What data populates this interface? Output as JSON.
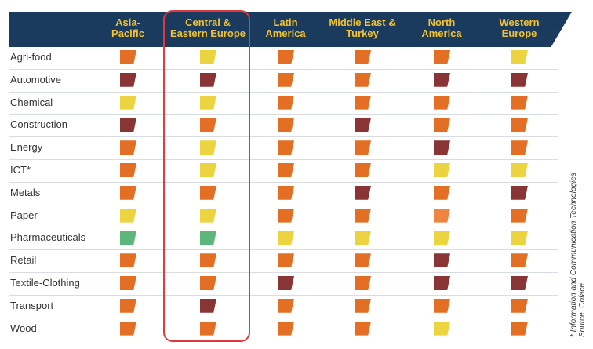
{
  "colors": {
    "header_bg": "#1a3a5e",
    "header_text": "#f2c230",
    "highlight": "#e03a3e",
    "rating_colors": {
      "yellow": "#ecd340",
      "orange": "#e36f24",
      "light_orange": "#ef8541",
      "dark": "#8a3535",
      "green": "#5cb87a"
    }
  },
  "regions": [
    {
      "label": "Asia-\nPacific"
    },
    {
      "label": "Central &\nEastern Europe"
    },
    {
      "label": "Latin\nAmerica"
    },
    {
      "label": "Middle East &\nTurkey"
    },
    {
      "label": "North\nAmerica"
    },
    {
      "label": "Western\nEurope"
    }
  ],
  "sectors": [
    {
      "label": "Agri-food",
      "ratings": [
        "orange",
        "yellow",
        "orange",
        "orange",
        "orange",
        "yellow"
      ]
    },
    {
      "label": "Automotive",
      "ratings": [
        "dark",
        "dark",
        "orange",
        "orange",
        "dark",
        "dark"
      ]
    },
    {
      "label": "Chemical",
      "ratings": [
        "yellow",
        "yellow",
        "orange",
        "orange",
        "orange",
        "orange"
      ]
    },
    {
      "label": "Construction",
      "ratings": [
        "dark",
        "orange",
        "orange",
        "dark",
        "orange",
        "orange"
      ]
    },
    {
      "label": "Energy",
      "ratings": [
        "orange",
        "yellow",
        "orange",
        "orange",
        "dark",
        "orange"
      ]
    },
    {
      "label": "ICT*",
      "ratings": [
        "orange",
        "yellow",
        "orange",
        "orange",
        "yellow",
        "yellow"
      ]
    },
    {
      "label": "Metals",
      "ratings": [
        "orange",
        "orange",
        "orange",
        "dark",
        "orange",
        "dark"
      ]
    },
    {
      "label": "Paper",
      "ratings": [
        "yellow",
        "yellow",
        "orange",
        "orange",
        "light_orange",
        "orange"
      ]
    },
    {
      "label": "Pharmaceuticals",
      "ratings": [
        "green",
        "green",
        "yellow",
        "yellow",
        "yellow",
        "yellow"
      ]
    },
    {
      "label": "Retail",
      "ratings": [
        "orange",
        "orange",
        "orange",
        "orange",
        "dark",
        "orange"
      ]
    },
    {
      "label": "Textile-Clothing",
      "ratings": [
        "orange",
        "orange",
        "dark",
        "orange",
        "dark",
        "dark"
      ]
    },
    {
      "label": "Transport",
      "ratings": [
        "orange",
        "dark",
        "orange",
        "orange",
        "orange",
        "orange"
      ]
    },
    {
      "label": "Wood",
      "ratings": [
        "orange",
        "orange",
        "orange",
        "orange",
        "yellow",
        "orange"
      ]
    }
  ],
  "footnote": {
    "line1": "* Information and Communication Technologies",
    "line2": "Source: Coface"
  }
}
